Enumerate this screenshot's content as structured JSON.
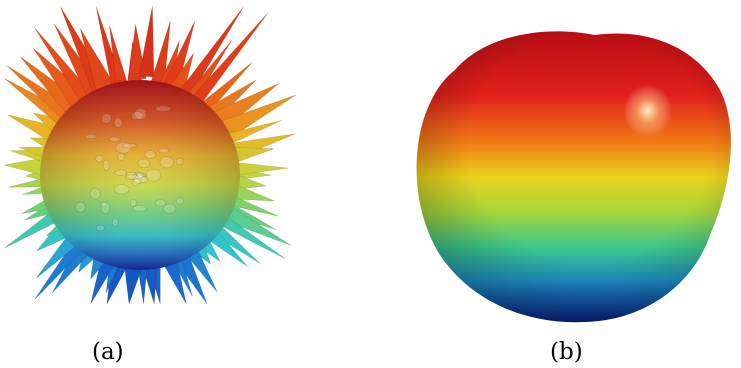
{
  "panels": [
    {
      "id": "a",
      "caption": "(a)",
      "description_shape": "spiky-surface"
    },
    {
      "id": "b",
      "caption": "(b)",
      "description_shape": "smooth-blob"
    }
  ],
  "colormap": [
    "#0a1fa8",
    "#1a8ad6",
    "#2fd0c2",
    "#9ad84a",
    "#e6d21e",
    "#f08a14",
    "#d8141a"
  ]
}
